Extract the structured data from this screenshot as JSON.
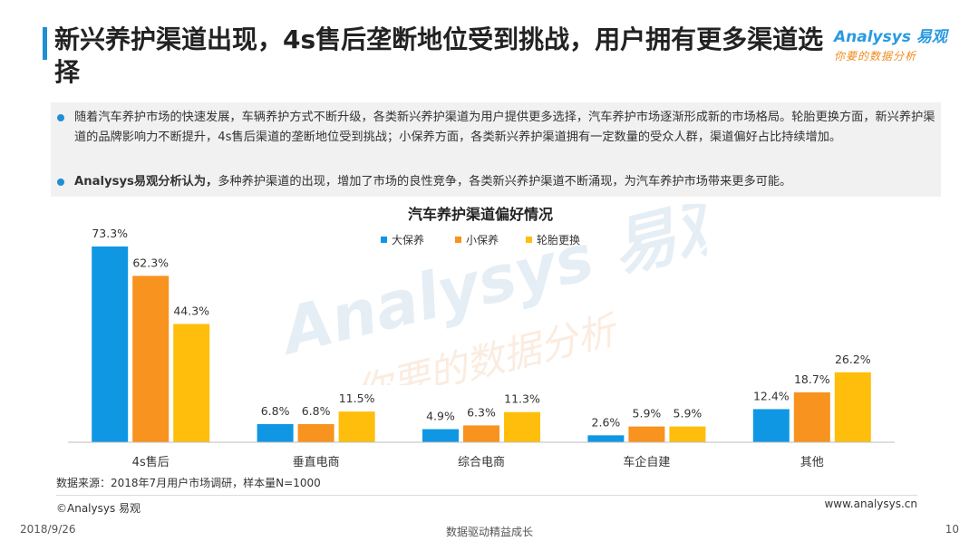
{
  "header": {
    "title": "新兴养护渠道出现，4s售后垄断地位受到挑战，用户拥有更多渠道选择",
    "logo_brand": "Analysys 易观",
    "logo_tagline": "你要的数据分析"
  },
  "bullets": [
    {
      "bold": "",
      "text": "随着汽车养护市场的快速发展，车辆养护方式不断升级，各类新兴养护渠道为用户提供更多选择，汽车养护市场逐渐形成新的市场格局。轮胎更换方面，新兴养护渠道的品牌影响力不断提升，4s售后渠道的垄断地位受到挑战；小保养方面，各类新兴养护渠道拥有一定数量的受众人群，渠道偏好占比持续增加。"
    },
    {
      "bold": "Analysys易观分析认为，",
      "text": "多种养护渠道的出现，增加了市场的良性竞争，各类新兴养护渠道不断涌现，为汽车养护市场带来更多可能。"
    }
  ],
  "chart_data": {
    "type": "bar",
    "title": "汽车养护渠道偏好情况",
    "categories": [
      "4s售后",
      "垂直电商",
      "综合电商",
      "车企自建",
      "其他"
    ],
    "series": [
      {
        "name": "大保养",
        "color": "#0f97e3",
        "values": [
          73.3,
          6.8,
          4.9,
          2.6,
          12.4
        ]
      },
      {
        "name": "小保养",
        "color": "#f7931e",
        "values": [
          62.3,
          6.8,
          6.3,
          5.9,
          18.7
        ]
      },
      {
        "name": "轮胎更换",
        "color": "#ffbe0b",
        "values": [
          44.3,
          11.5,
          11.3,
          5.9,
          26.2
        ]
      }
    ],
    "value_suffix": "%",
    "ylim": [
      0,
      73.3
    ],
    "legend": "top-center",
    "grid": false
  },
  "footer": {
    "source": "数据来源：2018年7月用户市场调研，样本量N=1000",
    "copyright": "©Analysys 易观",
    "website": "www.analysys.cn",
    "date": "2018/9/26",
    "slogan": "数据驱动精益成长",
    "page": "10"
  }
}
